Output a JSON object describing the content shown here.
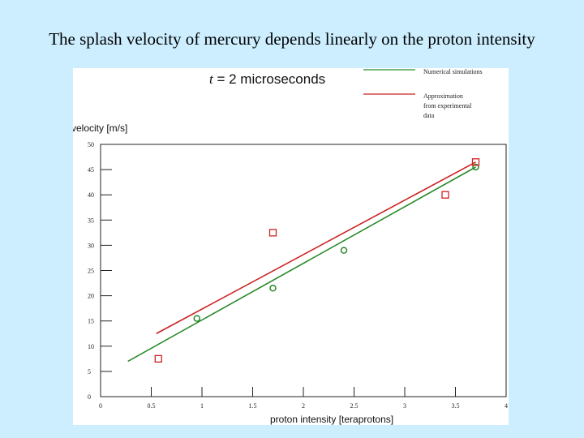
{
  "slide": {
    "title": "The splash velocity of mercury depends linearly on the proton intensity"
  },
  "colors": {
    "background": "#cceeff",
    "simulation": "#2a8a2a",
    "experiment": "#cc2222"
  },
  "chart_data": {
    "type": "scatter",
    "annotation_var": "t",
    "annotation_rest": " = 2  microseconds",
    "xlabel": "proton intensity [teraprotons]",
    "ylabel": "velocity [m/s]",
    "xlim": [
      0,
      4
    ],
    "ylim": [
      0,
      50
    ],
    "x_ticks": [
      "0",
      "0.5",
      "1",
      "1.5",
      "2",
      "2.5",
      "3",
      "3.5",
      "4"
    ],
    "y_ticks": [
      "0",
      "5",
      "10",
      "15",
      "20",
      "25",
      "30",
      "35",
      "40",
      "45",
      "50"
    ],
    "legend": [
      {
        "label": "Numerical simulations",
        "color": "#2a8a2a",
        "lines": [
          "Numerical simulations"
        ]
      },
      {
        "label": "Approximation from experimental data",
        "color": "#cc2222",
        "lines": [
          "Approximation",
          "from experimental",
          "data"
        ]
      }
    ],
    "series": [
      {
        "name": "Numerical simulations",
        "color": "#2a8a2a",
        "marker": "circle",
        "points": [
          [
            0.95,
            15.5
          ],
          [
            1.7,
            21.5
          ],
          [
            2.4,
            29
          ],
          [
            3.7,
            45.5
          ]
        ],
        "fit": [
          [
            0.27,
            7
          ],
          [
            3.7,
            45.5
          ]
        ]
      },
      {
        "name": "Approximation from experimental data",
        "color": "#cc2222",
        "marker": "square",
        "points": [
          [
            0.57,
            7.5
          ],
          [
            1.7,
            32.5
          ],
          [
            3.4,
            40
          ],
          [
            3.7,
            46.5
          ]
        ],
        "fit": [
          [
            0.55,
            12.5
          ],
          [
            3.7,
            46.5
          ]
        ]
      }
    ]
  }
}
